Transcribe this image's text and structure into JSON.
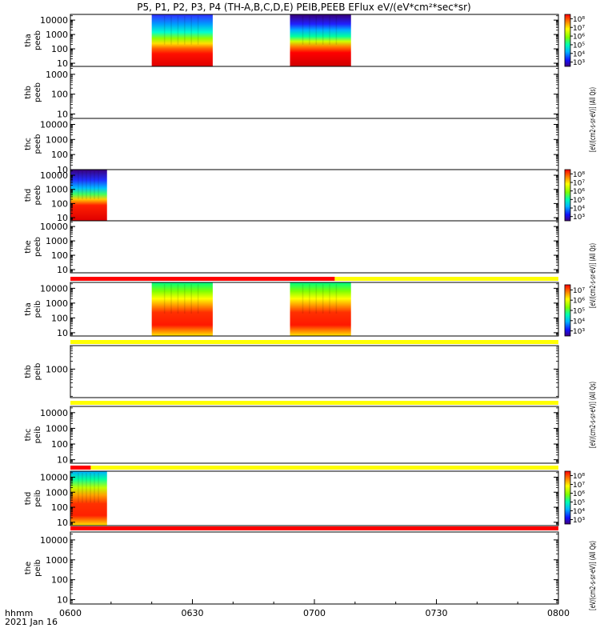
{
  "title": "P5, P1, P2, P3, P4 (TH-A,B,C,D,E) PEIB,PEEB EFlux eV/(eV*cm²*sec*sr)",
  "colors": {
    "status_red": "#ff0000",
    "status_yellow": "#ffff00",
    "frame": "#000000"
  },
  "chart_data": {
    "type": "heatmap",
    "x_axis": {
      "range": [
        "0600",
        "0800"
      ],
      "ticks": [
        "0600",
        "0630",
        "0700",
        "0730",
        "0800"
      ],
      "label_line1": "hhmm",
      "label_line2": "2021 Jan 16"
    },
    "y_scale": "log",
    "colorbars": [
      {
        "id": "peeb-1",
        "label": "[eV/(cm2-s-sr-eV)] (All Qs)",
        "ticks": [
          "10⁸",
          "10⁷",
          "10⁶",
          "10⁵",
          "10⁴",
          "10³"
        ],
        "range_exp": [
          2.5,
          8.5
        ],
        "spans_panels": [
          "tha-peeb",
          "thb-peeb",
          "thc-peeb"
        ]
      },
      {
        "id": "peeb-2",
        "label": "[eV/(cm2-s-sr-eV)] (All Qs)",
        "ticks": [
          "10⁸",
          "10⁷",
          "10⁶",
          "10⁵",
          "10⁴",
          "10³"
        ],
        "range_exp": [
          2.5,
          8.5
        ],
        "spans_panels": [
          "thd-peeb",
          "the-peeb"
        ]
      },
      {
        "id": "peib-1",
        "label": "[eV/(cm2-s-sr-eV)] (All Qs)",
        "ticks": [
          "10⁷",
          "10⁶",
          "10⁵",
          "10⁴",
          "10³"
        ],
        "range_exp": [
          2.5,
          7.5
        ],
        "spans_panels": [
          "tha-peib",
          "thb-peib",
          "thc-peib"
        ]
      },
      {
        "id": "peib-2",
        "label": "[eV/(cm2-s-sr-eV)] (All Qs)",
        "ticks": [
          "10⁸",
          "10⁷",
          "10⁶",
          "10⁵",
          "10⁴",
          "10³"
        ],
        "range_exp": [
          2.5,
          8.5
        ],
        "spans_panels": [
          "thd-peib",
          "the-peib"
        ]
      }
    ],
    "panels": [
      {
        "id": "tha-peeb",
        "probe": "tha",
        "product": "peeb",
        "yticks": [
          "10000",
          "1000",
          "100",
          "10"
        ],
        "ylim": [
          6,
          25000
        ],
        "blocks": [
          {
            "start": "0620",
            "end": "0635",
            "style": "peeb-a"
          },
          {
            "start": "0654",
            "end": "0709",
            "style": "peeb-b"
          }
        ],
        "status_bar": []
      },
      {
        "id": "thb-peeb",
        "probe": "thb",
        "product": "peeb",
        "yticks": [
          "1000",
          "100",
          "10"
        ],
        "ylim": [
          6,
          2500
        ],
        "blocks": [],
        "status_bar": []
      },
      {
        "id": "thc-peeb",
        "probe": "thc",
        "product": "peeb",
        "yticks": [
          "10000",
          "1000",
          "100",
          "10"
        ],
        "ylim": [
          10,
          25000
        ],
        "blocks": [],
        "status_bar": []
      },
      {
        "id": "thd-peeb",
        "probe": "thd",
        "product": "peeb",
        "yticks": [
          "10000",
          "1000",
          "100",
          "10"
        ],
        "ylim": [
          6,
          25000
        ],
        "blocks": [
          {
            "start": "0600",
            "end": "0609",
            "style": "peeb-d"
          }
        ],
        "status_bar": []
      },
      {
        "id": "the-peeb",
        "probe": "the",
        "product": "peeb",
        "yticks": [
          "10000",
          "1000",
          "100",
          "10"
        ],
        "ylim": [
          6,
          25000
        ],
        "blocks": [],
        "status_bar": []
      },
      {
        "id": "tha-peib",
        "probe": "tha",
        "product": "peib",
        "yticks": [
          "10000",
          "1000",
          "100",
          "10"
        ],
        "ylim": [
          6,
          25000
        ],
        "blocks": [
          {
            "start": "0620",
            "end": "0635",
            "style": "peib"
          },
          {
            "start": "0654",
            "end": "0709",
            "style": "peib"
          }
        ],
        "status_bar": [
          {
            "start": "0600",
            "end": "0705",
            "color": "red"
          },
          {
            "start": "0705",
            "end": "0800",
            "color": "yellow"
          }
        ]
      },
      {
        "id": "thb-peib",
        "probe": "thb",
        "product": "peib",
        "yticks": [
          "1000"
        ],
        "ylim": [
          80,
          8000
        ],
        "blocks": [],
        "status_bar": [
          {
            "start": "0600",
            "end": "0800",
            "color": "yellow"
          }
        ]
      },
      {
        "id": "thc-peib",
        "probe": "thc",
        "product": "peib",
        "yticks": [
          "10000",
          "1000",
          "100",
          "10"
        ],
        "ylim": [
          6,
          25000
        ],
        "blocks": [],
        "status_bar": [
          {
            "start": "0600",
            "end": "0800",
            "color": "yellow"
          }
        ]
      },
      {
        "id": "thd-peib",
        "probe": "thd",
        "product": "peib",
        "yticks": [
          "10000",
          "1000",
          "100",
          "10"
        ],
        "ylim": [
          6,
          25000
        ],
        "blocks": [
          {
            "start": "0600",
            "end": "0609",
            "style": "peib-d"
          }
        ],
        "status_bar": [
          {
            "start": "0600",
            "end": "0605",
            "color": "red"
          },
          {
            "start": "0605",
            "end": "0800",
            "color": "yellow"
          }
        ]
      },
      {
        "id": "the-peib",
        "probe": "the",
        "product": "peib",
        "yticks": [
          "10000",
          "1000",
          "100",
          "10"
        ],
        "ylim": [
          6,
          25000
        ],
        "blocks": [],
        "status_bar": [
          {
            "start": "0600",
            "end": "0800",
            "color": "red"
          }
        ]
      }
    ]
  }
}
